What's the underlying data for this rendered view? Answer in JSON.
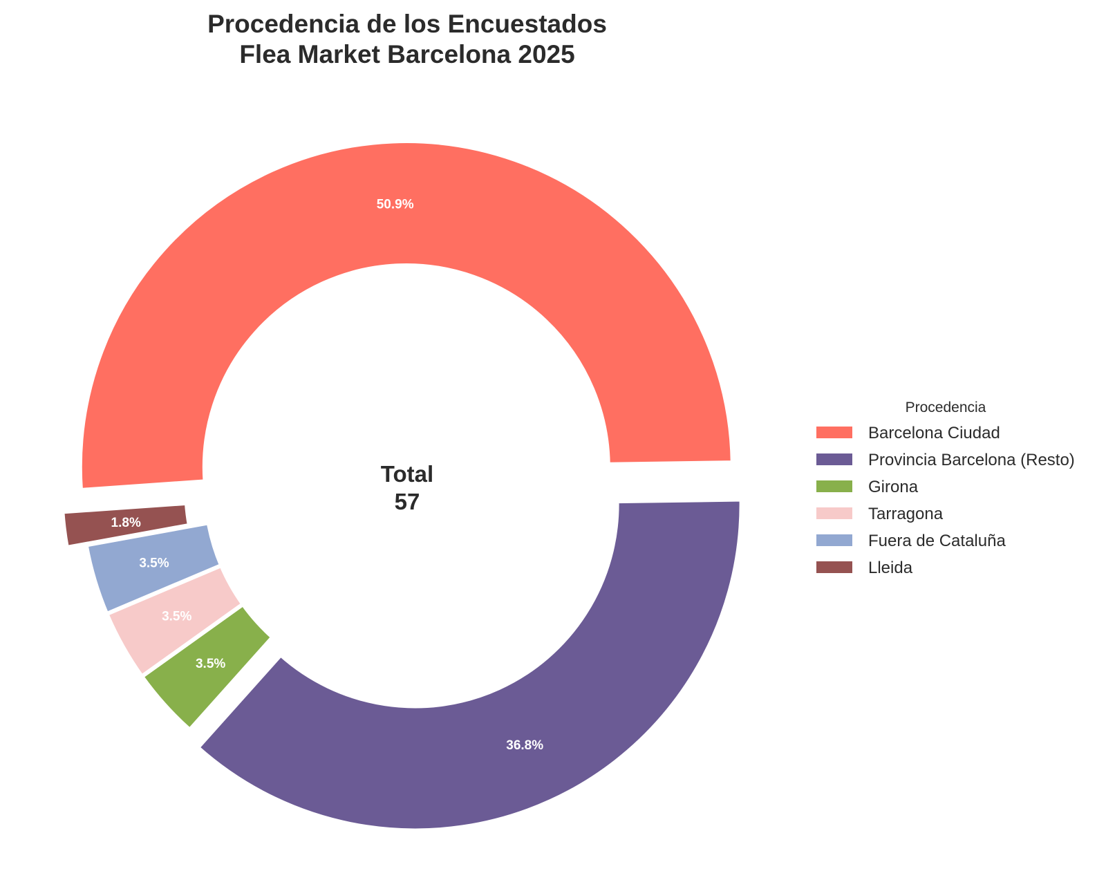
{
  "chart_data": {
    "type": "pie",
    "variant": "donut",
    "title": [
      "Procedencia de los Encuestados",
      "Flea Market Barcelona 2025"
    ],
    "slices": [
      {
        "name": "Barcelona Ciudad",
        "value": 29,
        "label": "50.9%",
        "color": "#FF6F61"
      },
      {
        "name": "Provincia Barcelona (Resto)",
        "value": 21,
        "label": "36.8%",
        "color": "#6B5B95"
      },
      {
        "name": "Girona",
        "value": 2,
        "label": "3.5%",
        "color": "#88B04B"
      },
      {
        "name": "Tarragona",
        "value": 2,
        "label": "3.5%",
        "color": "#F7CAC9"
      },
      {
        "name": "Fuera de Cataluña",
        "value": 2,
        "label": "3.5%",
        "color": "#92A8D1"
      },
      {
        "name": "Lleida",
        "value": 1,
        "label": "1.8%",
        "color": "#955251"
      }
    ],
    "exploded": [
      "Barcelona Ciudad",
      "Provincia Barcelona (Resto)",
      "Lleida"
    ],
    "center_label": [
      "Total",
      "57"
    ],
    "legend": {
      "title": "Procedencia",
      "placement": "right"
    }
  }
}
